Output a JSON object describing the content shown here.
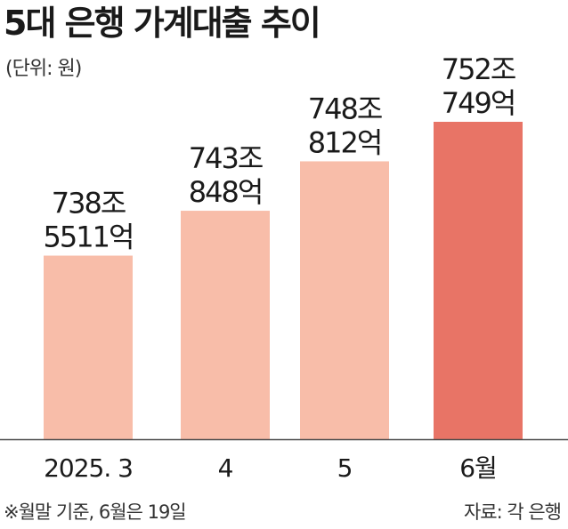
{
  "chart_data": {
    "type": "bar",
    "title": "5대 은행 가계대출 추이",
    "unit_label": "(단위: 원)",
    "categories": [
      "2025. 3",
      "4",
      "5",
      "6월"
    ],
    "values": [
      738.5511,
      743.0848,
      748.0812,
      752.0749
    ],
    "value_labels": [
      [
        "738조",
        "5511억"
      ],
      [
        "743조",
        "848억"
      ],
      [
        "748조",
        "812억"
      ],
      [
        "752조",
        "749억"
      ]
    ],
    "colors": [
      "#f8bda9",
      "#f8bda9",
      "#f8bda9",
      "#e87466"
    ],
    "ylim": [
      720,
      760
    ],
    "grid": false,
    "footnote": "※월말 기준, 6월은 19일",
    "source": "자료: 각 은행"
  }
}
